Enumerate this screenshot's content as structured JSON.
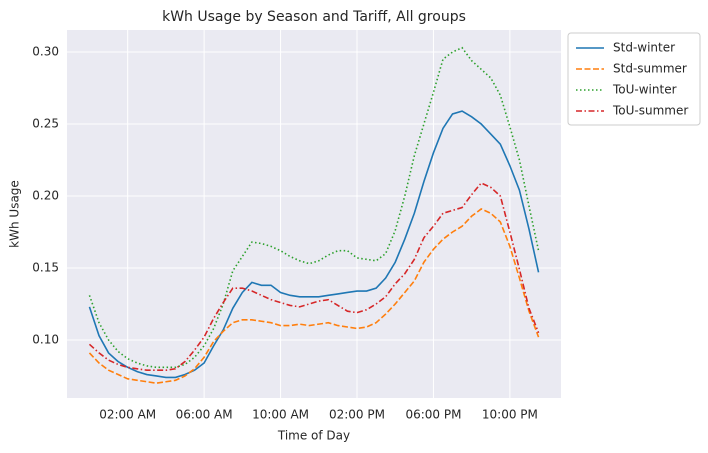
{
  "chart_data": {
    "type": "line",
    "title": "kWh Usage by Season and Tariff, All groups",
    "xlabel": "Time of Day",
    "ylabel": "kWh Usage",
    "x": [
      0,
      0.5,
      1,
      1.5,
      2,
      2.5,
      3,
      3.5,
      4,
      4.5,
      5,
      5.5,
      6,
      6.5,
      7,
      7.5,
      8,
      8.5,
      9,
      9.5,
      10,
      10.5,
      11,
      11.5,
      12,
      12.5,
      13,
      13.5,
      14,
      14.5,
      15,
      15.5,
      16,
      16.5,
      17,
      17.5,
      18,
      18.5,
      19,
      19.5,
      20,
      20.5,
      21,
      21.5,
      22,
      22.5,
      23,
      23.5
    ],
    "series": [
      {
        "name": "Std-winter",
        "color": "#1f77b4",
        "style": "solid",
        "values": [
          0.123,
          0.103,
          0.091,
          0.085,
          0.081,
          0.078,
          0.076,
          0.075,
          0.074,
          0.074,
          0.076,
          0.079,
          0.084,
          0.096,
          0.107,
          0.122,
          0.133,
          0.14,
          0.138,
          0.138,
          0.133,
          0.131,
          0.13,
          0.13,
          0.13,
          0.131,
          0.132,
          0.133,
          0.134,
          0.134,
          0.136,
          0.143,
          0.154,
          0.17,
          0.188,
          0.21,
          0.23,
          0.247,
          0.257,
          0.259,
          0.255,
          0.25,
          0.243,
          0.236,
          0.221,
          0.204,
          0.177,
          0.147
        ]
      },
      {
        "name": "Std-summer",
        "color": "#ff7f0e",
        "style": "dashed",
        "values": [
          0.091,
          0.084,
          0.079,
          0.076,
          0.073,
          0.072,
          0.071,
          0.07,
          0.071,
          0.072,
          0.075,
          0.08,
          0.088,
          0.099,
          0.106,
          0.112,
          0.114,
          0.114,
          0.113,
          0.112,
          0.11,
          0.11,
          0.111,
          0.11,
          0.111,
          0.112,
          0.11,
          0.109,
          0.108,
          0.109,
          0.112,
          0.118,
          0.125,
          0.133,
          0.141,
          0.154,
          0.163,
          0.17,
          0.175,
          0.179,
          0.186,
          0.191,
          0.188,
          0.182,
          0.165,
          0.143,
          0.12,
          0.102
        ]
      },
      {
        "name": "ToU-winter",
        "color": "#2ca02c",
        "style": "dotted",
        "values": [
          0.131,
          0.112,
          0.1,
          0.092,
          0.087,
          0.084,
          0.082,
          0.081,
          0.081,
          0.081,
          0.083,
          0.088,
          0.096,
          0.108,
          0.125,
          0.148,
          0.158,
          0.168,
          0.167,
          0.165,
          0.162,
          0.158,
          0.155,
          0.153,
          0.155,
          0.159,
          0.162,
          0.162,
          0.157,
          0.156,
          0.155,
          0.16,
          0.176,
          0.2,
          0.228,
          0.25,
          0.272,
          0.295,
          0.3,
          0.303,
          0.294,
          0.288,
          0.282,
          0.27,
          0.248,
          0.225,
          0.193,
          0.162
        ]
      },
      {
        "name": "ToU-summer",
        "color": "#d62728",
        "style": "dashdot",
        "values": [
          0.097,
          0.091,
          0.086,
          0.083,
          0.081,
          0.08,
          0.079,
          0.079,
          0.079,
          0.08,
          0.085,
          0.093,
          0.102,
          0.115,
          0.126,
          0.136,
          0.136,
          0.134,
          0.131,
          0.128,
          0.126,
          0.124,
          0.123,
          0.125,
          0.127,
          0.128,
          0.124,
          0.12,
          0.119,
          0.121,
          0.125,
          0.13,
          0.139,
          0.146,
          0.156,
          0.171,
          0.179,
          0.188,
          0.19,
          0.192,
          0.201,
          0.209,
          0.206,
          0.2,
          0.175,
          0.149,
          0.122,
          0.105
        ]
      }
    ],
    "xlim": [
      -1.175,
      24.675
    ],
    "xticks": [
      {
        "value": 2,
        "label": "02:00 AM"
      },
      {
        "value": 6,
        "label": "06:00 AM"
      },
      {
        "value": 10,
        "label": "10:00 AM"
      },
      {
        "value": 14,
        "label": "02:00 PM"
      },
      {
        "value": 18,
        "label": "06:00 PM"
      },
      {
        "value": 22,
        "label": "10:00 PM"
      }
    ],
    "ylim": [
      0.0597,
      0.3153
    ],
    "yticks": [
      {
        "value": 0.1,
        "label": "0.10"
      },
      {
        "value": 0.15,
        "label": "0.15"
      },
      {
        "value": 0.2,
        "label": "0.20"
      },
      {
        "value": 0.25,
        "label": "0.25"
      },
      {
        "value": 0.3,
        "label": "0.30"
      }
    ],
    "grid": true,
    "legend": "outside-right"
  }
}
